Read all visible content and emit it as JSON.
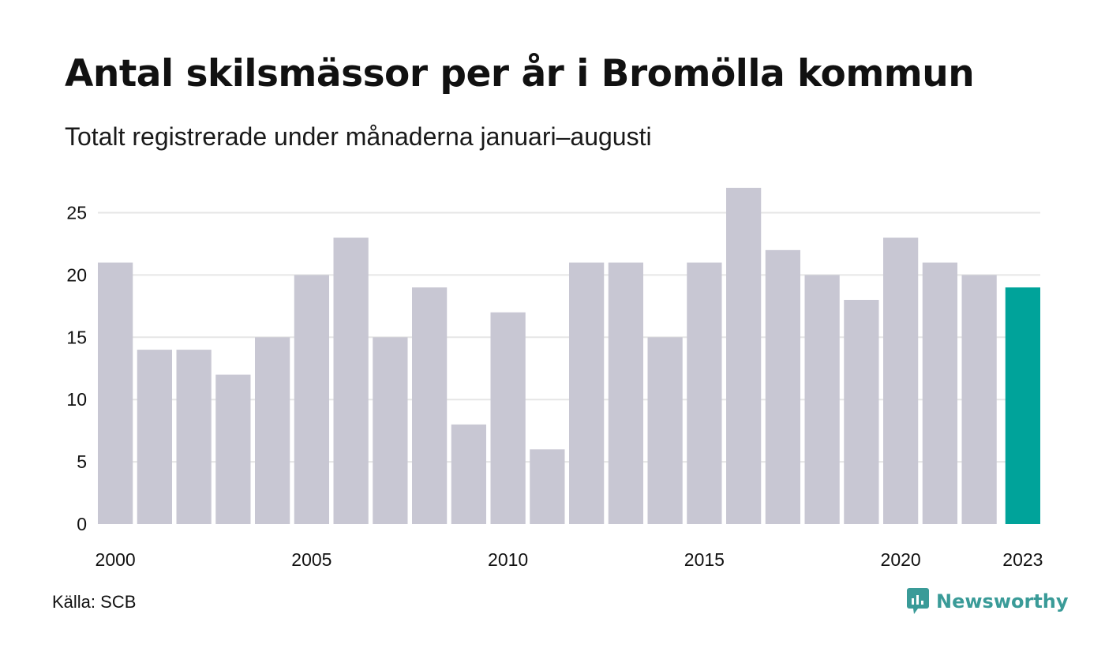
{
  "title": "Antal skilsmässor per år i Bromölla kommun",
  "subtitle": "Totalt registrerade under månaderna januari–augusti",
  "source": "Källa: SCB",
  "brand": {
    "name": "Newsworthy",
    "icon": "newsworthy-logo-icon",
    "color": "#3a9b98"
  },
  "colors": {
    "bar": "#c8c7d3",
    "highlight": "#00a39a",
    "grid": "#e6e6e6"
  },
  "chart_data": {
    "type": "bar",
    "categories": [
      "2000",
      "2001",
      "2002",
      "2003",
      "2004",
      "2005",
      "2006",
      "2007",
      "2008",
      "2009",
      "2010",
      "2011",
      "2012",
      "2013",
      "2014",
      "2015",
      "2016",
      "2017",
      "2018",
      "2019",
      "2020",
      "2021",
      "2022",
      "2023"
    ],
    "values": [
      21,
      14,
      14,
      12,
      15,
      20,
      23,
      15,
      19,
      8,
      17,
      6,
      21,
      21,
      15,
      21,
      27,
      22,
      20,
      18,
      23,
      21,
      20,
      19
    ],
    "highlight_category": "2023",
    "xtick_labels": [
      "2000",
      "2005",
      "2010",
      "2015",
      "2020",
      "2023"
    ],
    "yticks": [
      0,
      5,
      10,
      15,
      20,
      25
    ],
    "ylim": [
      0,
      27
    ],
    "grid": true,
    "legend": "none"
  }
}
